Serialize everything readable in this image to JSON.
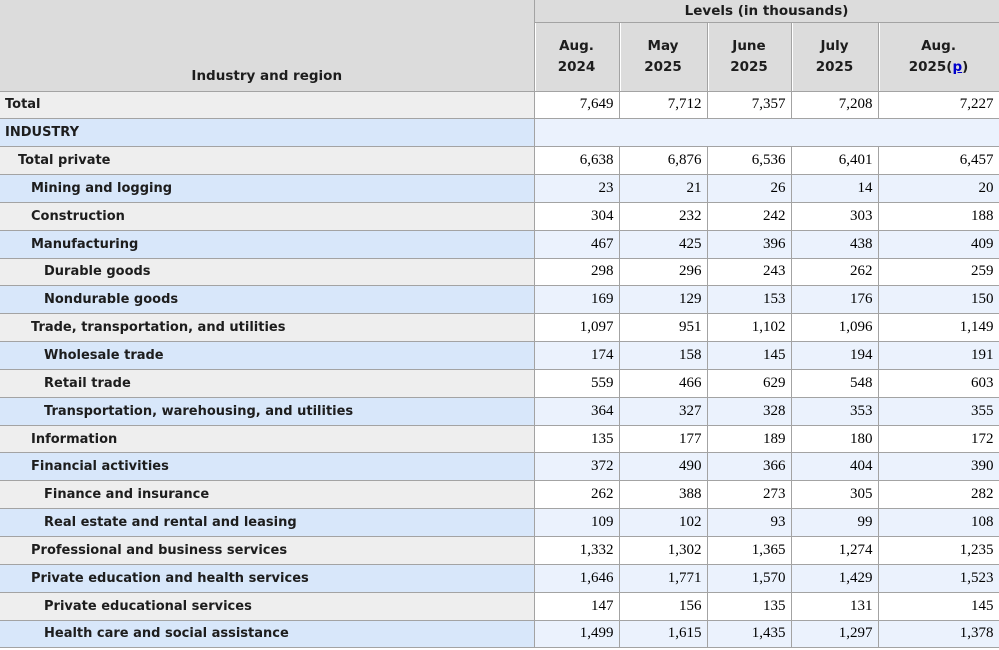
{
  "table": {
    "corner_header": "Industry and region",
    "group_header": "Levels (in thousands)",
    "columns": [
      {
        "line1": "Aug.",
        "line2": "2024",
        "footnote": null
      },
      {
        "line1": "May",
        "line2": "2025",
        "footnote": null
      },
      {
        "line1": "June",
        "line2": "2025",
        "footnote": null
      },
      {
        "line1": "July",
        "line2": "2025",
        "footnote": null
      },
      {
        "line1": "Aug.",
        "line2": "2025",
        "footnote": "p"
      }
    ],
    "rows": [
      {
        "label": "Total",
        "level": 0,
        "kind": "data",
        "values": [
          "7,649",
          "7,712",
          "7,357",
          "7,208",
          "7,227"
        ]
      },
      {
        "label": "INDUSTRY",
        "level": 0,
        "kind": "section",
        "values": []
      },
      {
        "label": "Total private",
        "level": 1,
        "kind": "data",
        "values": [
          "6,638",
          "6,876",
          "6,536",
          "6,401",
          "6,457"
        ]
      },
      {
        "label": "Mining and logging",
        "level": 2,
        "kind": "data",
        "values": [
          "23",
          "21",
          "26",
          "14",
          "20"
        ]
      },
      {
        "label": "Construction",
        "level": 2,
        "kind": "data",
        "values": [
          "304",
          "232",
          "242",
          "303",
          "188"
        ]
      },
      {
        "label": "Manufacturing",
        "level": 2,
        "kind": "data",
        "values": [
          "467",
          "425",
          "396",
          "438",
          "409"
        ]
      },
      {
        "label": "Durable goods",
        "level": 3,
        "kind": "data",
        "values": [
          "298",
          "296",
          "243",
          "262",
          "259"
        ]
      },
      {
        "label": "Nondurable goods",
        "level": 3,
        "kind": "data",
        "values": [
          "169",
          "129",
          "153",
          "176",
          "150"
        ]
      },
      {
        "label": "Trade, transportation, and utilities",
        "level": 2,
        "kind": "data",
        "values": [
          "1,097",
          "951",
          "1,102",
          "1,096",
          "1,149"
        ]
      },
      {
        "label": "Wholesale trade",
        "level": 3,
        "kind": "data",
        "values": [
          "174",
          "158",
          "145",
          "194",
          "191"
        ]
      },
      {
        "label": "Retail trade",
        "level": 3,
        "kind": "data",
        "values": [
          "559",
          "466",
          "629",
          "548",
          "603"
        ]
      },
      {
        "label": "Transportation, warehousing, and utilities",
        "level": 3,
        "kind": "data",
        "values": [
          "364",
          "327",
          "328",
          "353",
          "355"
        ]
      },
      {
        "label": "Information",
        "level": 2,
        "kind": "data",
        "values": [
          "135",
          "177",
          "189",
          "180",
          "172"
        ]
      },
      {
        "label": "Financial activities",
        "level": 2,
        "kind": "data",
        "values": [
          "372",
          "490",
          "366",
          "404",
          "390"
        ]
      },
      {
        "label": "Finance and insurance",
        "level": 3,
        "kind": "data",
        "values": [
          "262",
          "388",
          "273",
          "305",
          "282"
        ]
      },
      {
        "label": "Real estate and rental and leasing",
        "level": 3,
        "kind": "data",
        "values": [
          "109",
          "102",
          "93",
          "99",
          "108"
        ]
      },
      {
        "label": "Professional and business services",
        "level": 2,
        "kind": "data",
        "values": [
          "1,332",
          "1,302",
          "1,365",
          "1,274",
          "1,235"
        ]
      },
      {
        "label": "Private education and health services",
        "level": 2,
        "kind": "data",
        "values": [
          "1,646",
          "1,771",
          "1,570",
          "1,429",
          "1,523"
        ]
      },
      {
        "label": "Private educational services",
        "level": 3,
        "kind": "data",
        "values": [
          "147",
          "156",
          "135",
          "131",
          "145"
        ]
      },
      {
        "label": "Health care and social assistance",
        "level": 3,
        "kind": "data",
        "values": [
          "1,499",
          "1,615",
          "1,435",
          "1,297",
          "1,378"
        ]
      }
    ],
    "colors": {
      "header_bg": "#dcdcdc",
      "border": "#a3a3a3",
      "row_gray_label": "#eeeeee",
      "row_gray_value": "#ffffff",
      "row_blue_label": "#d8e7fa",
      "row_blue_value": "#ebf2fd",
      "link": "#0000cc"
    }
  }
}
